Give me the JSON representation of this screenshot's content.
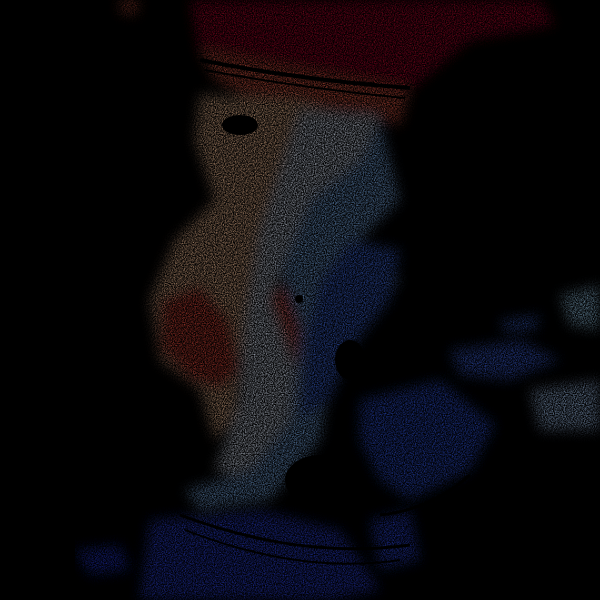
{
  "image": {
    "kind": "doppler-radar-velocity-field",
    "background": "#000000",
    "colors": {
      "strong_outbound": "#a50026",
      "outbound": "#e0503a",
      "weak_outbound": "#fdd0a2",
      "near_zero": "#f0f4ff",
      "weak_inbound": "#8fc3f5",
      "inbound": "#4a7ef0",
      "strong_inbound": "#1a2fd6"
    }
  }
}
